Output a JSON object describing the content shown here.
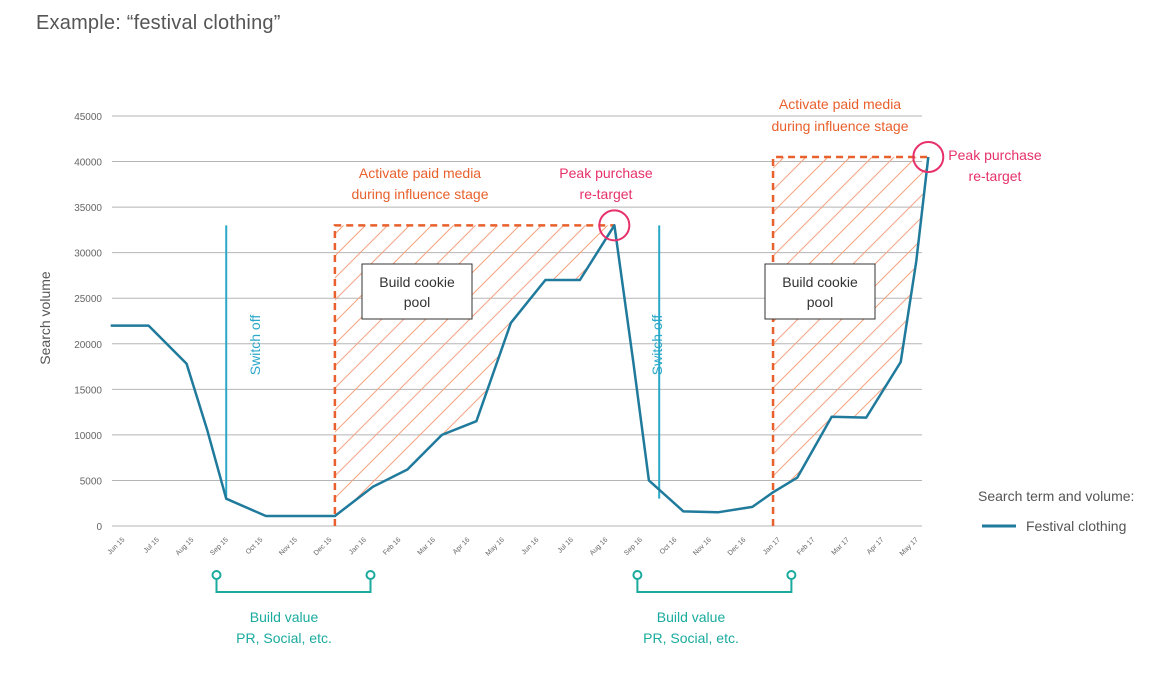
{
  "page": {
    "title": "Example: “festival clothing”"
  },
  "chart_data": {
    "type": "line",
    "title": "Example: “festival clothing”",
    "ylabel": "Search volume",
    "xlabel": "",
    "ylim": [
      0,
      45000
    ],
    "yticks": [
      0,
      5000,
      10000,
      15000,
      20000,
      25000,
      30000,
      35000,
      40000,
      45000
    ],
    "grid": true,
    "categories": [
      "Jun 15",
      "Jul 15",
      "Aug 15",
      "Sep 15",
      "Oct 15",
      "Nov 15",
      "Dec 15",
      "Jan 16",
      "Feb 16",
      "Mar 16",
      "Apr 16",
      "May 16",
      "Jun 16",
      "Jul 16",
      "Aug 16",
      "Sep 16",
      "Oct 16",
      "Nov 16",
      "Dec 16",
      "Jan 17",
      "Feb 17",
      "Mar 17",
      "Apr 17",
      "May 17"
    ],
    "series": [
      {
        "name": "Festival clothing",
        "color": "#1f7a9c",
        "points": [
          [
            -0.3,
            22000
          ],
          [
            0.8,
            22000
          ],
          [
            1.9,
            17800
          ],
          [
            2.5,
            10500
          ],
          [
            3.05,
            3000
          ],
          [
            4.2,
            1100
          ],
          [
            5.2,
            1100
          ],
          [
            6.2,
            1100
          ],
          [
            7.3,
            4300
          ],
          [
            8.3,
            6200
          ],
          [
            9.3,
            10000
          ],
          [
            10.3,
            11500
          ],
          [
            11.3,
            22300
          ],
          [
            12.3,
            27000
          ],
          [
            13.3,
            27000
          ],
          [
            14.3,
            33000
          ],
          [
            14.85,
            18000
          ],
          [
            15.3,
            5000
          ],
          [
            16.3,
            1600
          ],
          [
            17.3,
            1500
          ],
          [
            18.3,
            2100
          ],
          [
            18.9,
            3700
          ],
          [
            19.6,
            5300
          ],
          [
            20.6,
            12000
          ],
          [
            21.6,
            11900
          ],
          [
            22.6,
            18000
          ],
          [
            23.05,
            29000
          ],
          [
            23.4,
            40500
          ]
        ]
      }
    ],
    "legend": {
      "title": "Search term and volume:",
      "entries": [
        "Festival clothing"
      ],
      "position": "right"
    },
    "annotations": {
      "switch_off_1": "Switch off",
      "switch_off_2": "Switch off",
      "activate_1_line1": "Activate paid media",
      "activate_1_line2": "during influence stage",
      "activate_2_line1": "Activate paid media",
      "activate_2_line2": "during influence stage",
      "peak_1_line1": "Peak purchase",
      "peak_1_line2": "re-target",
      "peak_2_line1": "Peak purchase",
      "peak_2_line2": "re-target",
      "cookie_1_line1": "Build cookie",
      "cookie_1_line2": "pool",
      "cookie_2_line1": "Build cookie",
      "cookie_2_line2": "pool",
      "build_value_1_line1": "Build value",
      "build_value_1_line2": "PR, Social, etc.",
      "build_value_2_line1": "Build value",
      "build_value_2_line2": "PR, Social, etc."
    },
    "influence_zones": [
      {
        "start_index": 6.2,
        "end_index": 14.3,
        "top_value": 33000
      },
      {
        "start_index": 18.9,
        "end_index": 23.4,
        "top_value": 40500
      }
    ],
    "switch_off_index": [
      3.05,
      15.6
    ],
    "switch_off_top_value": 33000,
    "peak_points": [
      {
        "index": 14.3,
        "value": 33000
      },
      {
        "index": 23.4,
        "value": 40500
      }
    ],
    "build_value_ranges": [
      [
        3.0,
        7.0
      ],
      [
        15.2,
        19.2
      ]
    ],
    "colors": {
      "line": "#1f7a9c",
      "grid": "#b5b5b5",
      "zone": "#e8602c",
      "hatch": "#f4a07e",
      "peak": "#e6316a",
      "switch": "#2aa8c9",
      "bracket": "#1aab9e"
    }
  }
}
